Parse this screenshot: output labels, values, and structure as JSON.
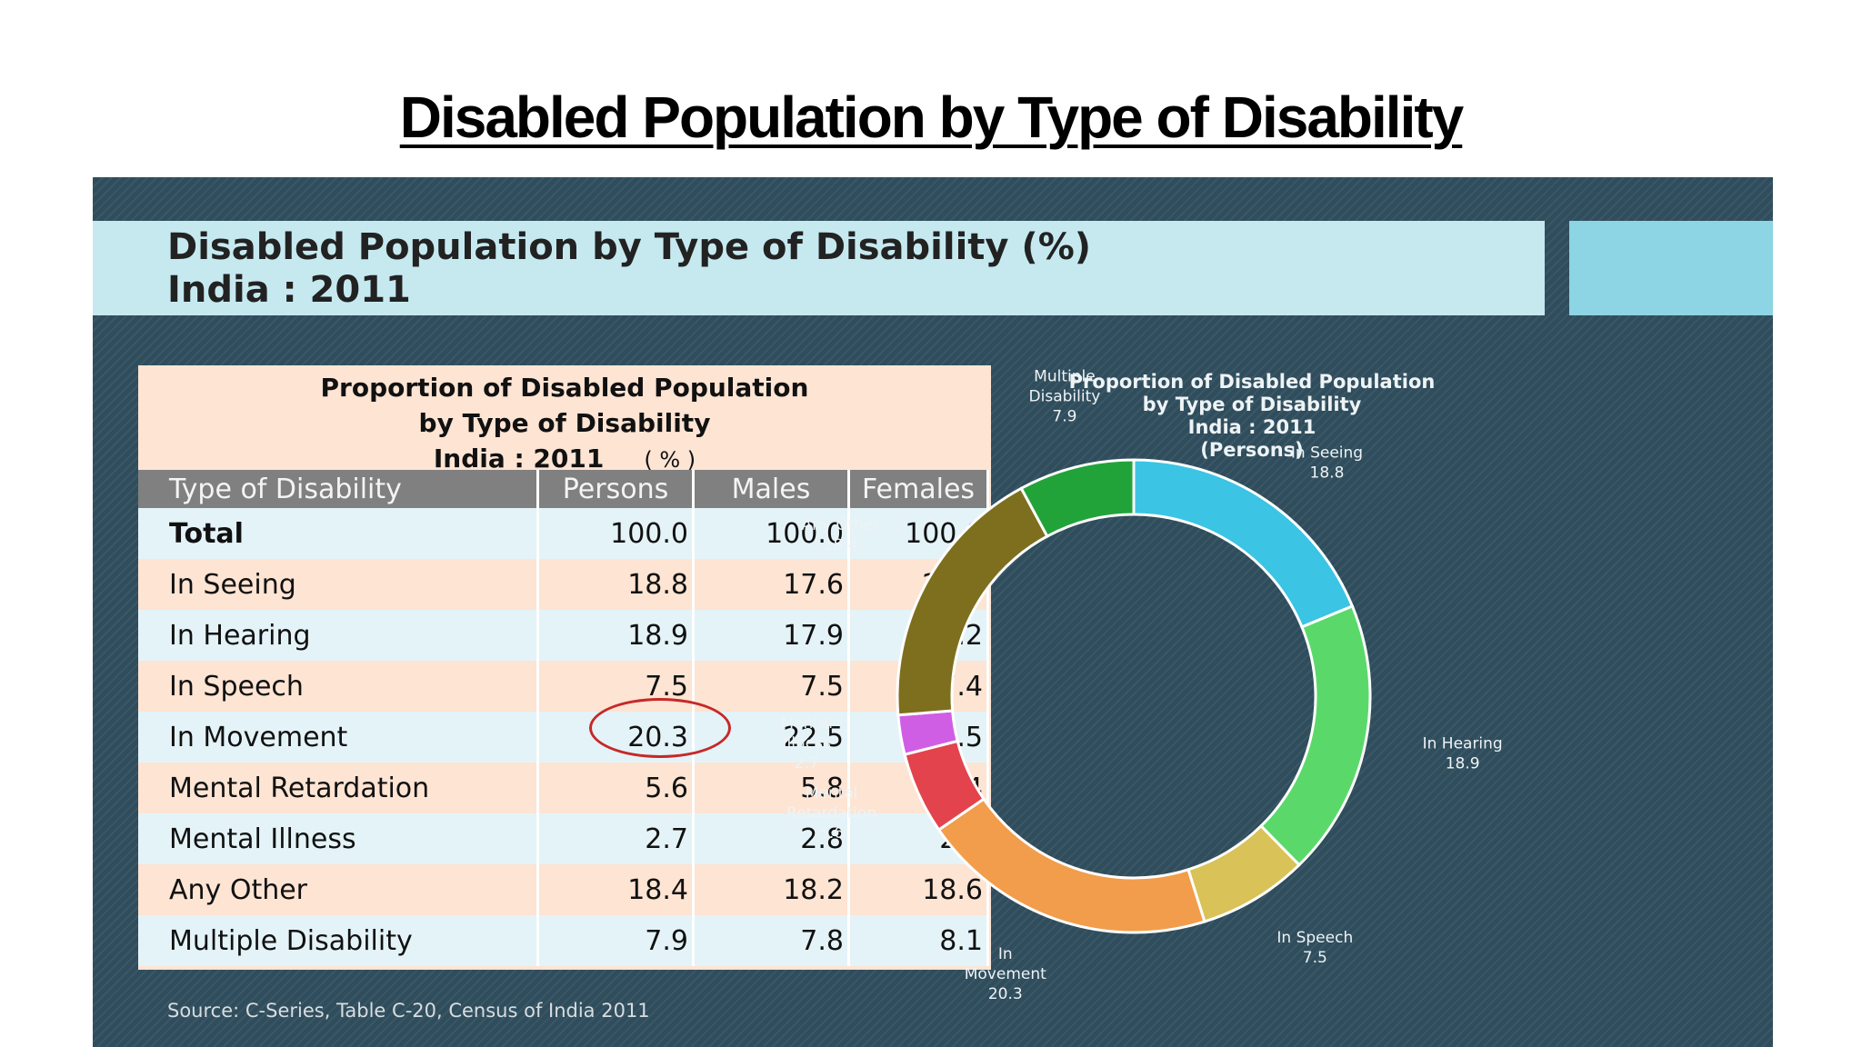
{
  "page_title": "Disabled Population by Type of Disability",
  "slide": {
    "title_line1": "Disabled Population by Type of Disability (%)",
    "title_line2": "India : 2011",
    "source": "Source: C-Series, Table C-20, Census of India 2011"
  },
  "table": {
    "title_line1": "Proportion of Disabled Population",
    "title_line2": "by Type of Disability",
    "title_line3": "India : 2011",
    "units": "( % )",
    "headers": [
      "Type of Disability",
      "Persons",
      "Males",
      "Females"
    ],
    "rows": [
      {
        "type": "Total",
        "persons": "100.0",
        "males": "100.0",
        "females": "100.0"
      },
      {
        "type": "In Seeing",
        "persons": "18.8",
        "males": "17.6",
        "females": "20.2"
      },
      {
        "type": "In Hearing",
        "persons": "18.9",
        "males": "17.9",
        "females": "20.2"
      },
      {
        "type": "In Speech",
        "persons": "7.5",
        "males": "7.5",
        "females": "7.4"
      },
      {
        "type": "In Movement",
        "persons": "20.3",
        "males": "22.5",
        "females": "17.5"
      },
      {
        "type": "Mental Retardation",
        "persons": "5.6",
        "males": "5.8",
        "females": "5.4"
      },
      {
        "type": "Mental Illness",
        "persons": "2.7",
        "males": "2.8",
        "females": "2.6"
      },
      {
        "type": "Any Other",
        "persons": "18.4",
        "males": "18.2",
        "females": "18.6"
      },
      {
        "type": "Multiple Disability",
        "persons": "7.9",
        "males": "7.8",
        "females": "8.1"
      }
    ],
    "highlight_color": "#c62828"
  },
  "chart_data": {
    "type": "pie",
    "variant": "donut",
    "title_lines": [
      "Proportion of Disabled Population",
      "by Type of Disability",
      "India : 2011",
      "(Persons)"
    ],
    "series": [
      {
        "values": [
          18.8,
          18.9,
          7.5,
          20.3,
          5.6,
          2.7,
          18.4,
          7.9
        ],
        "slices": [
          {
            "label": [
              "In Seeing",
              "18.8"
            ],
            "value": 18.8,
            "color": "#3bc4e4"
          },
          {
            "label": [
              "In Hearing",
              "18.9"
            ],
            "value": 18.9,
            "color": "#5ad96a"
          },
          {
            "label": [
              "In Speech",
              "7.5"
            ],
            "value": 7.5,
            "color": "#d9c257"
          },
          {
            "label": [
              "In",
              "Movement",
              "20.3"
            ],
            "value": 20.3,
            "color": "#f29d4b"
          },
          {
            "label": [
              "Mental",
              "Retardation",
              "5.6"
            ],
            "value": 5.6,
            "color": "#e2434c"
          },
          {
            "label": [
              "Mental",
              "Illness",
              "2.7"
            ],
            "value": 2.7,
            "color": "#d05ee4"
          },
          {
            "label": [
              "Any Other",
              "18.4"
            ],
            "value": 18.4,
            "color": "#7d6f1d"
          },
          {
            "label": [
              "Multiple",
              "Disability",
              "7.9"
            ],
            "value": 7.9,
            "color": "#22a33a"
          }
        ]
      }
    ],
    "start_angle_deg": 0,
    "direction": "clockwise",
    "slice_border_color": "#ffffff",
    "label_color": "#eef3f5"
  }
}
